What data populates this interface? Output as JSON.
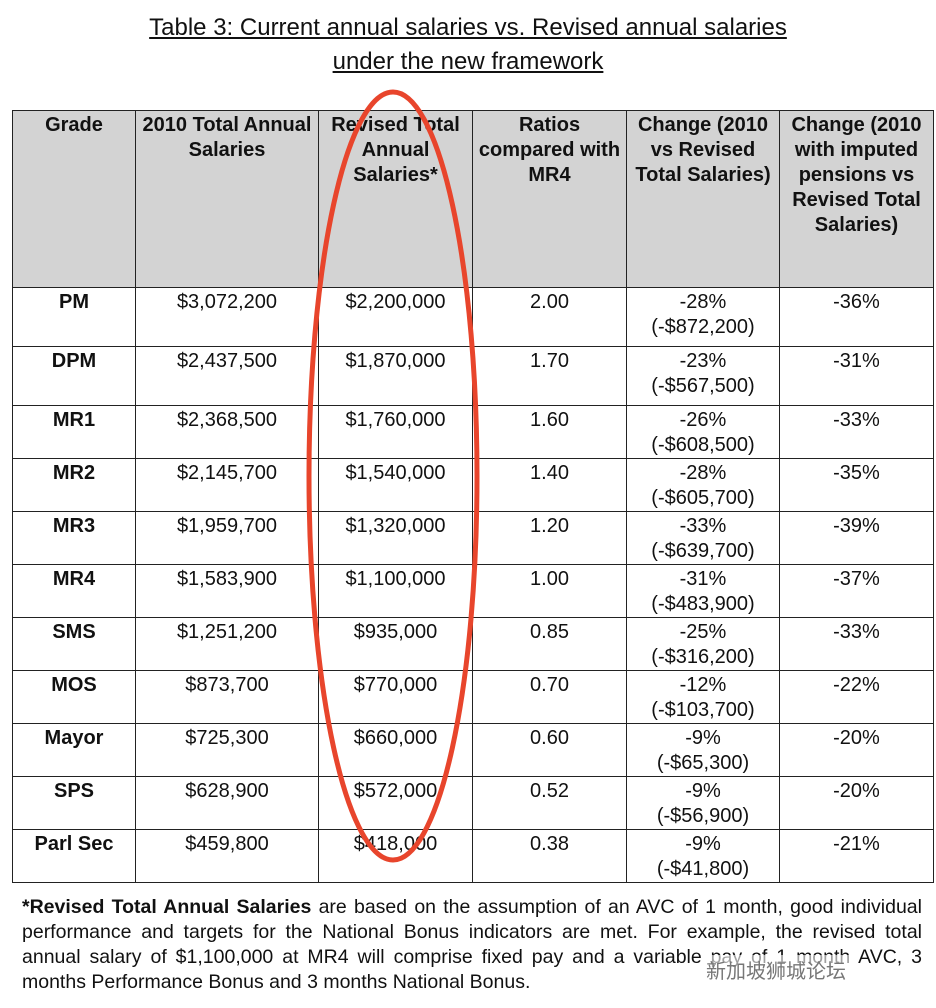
{
  "header": {
    "title_line1": "Table 3: Current annual salaries vs. Revised annual salaries",
    "title_line2": "under the new framework"
  },
  "table": {
    "columns": [
      "Grade",
      "2010 Total Annual Salaries",
      "Revised Total Annual Salaries*",
      "Ratios compared with MR4",
      "Change (2010 vs Revised Total Salaries)",
      "Change (2010 with imputed pensions vs Revised Total Salaries)"
    ],
    "rows": [
      [
        "PM",
        "$3,072,200",
        "$2,200,000",
        "2.00",
        {
          "percent": "-28%",
          "amount": "(-$872,200)"
        },
        "-36%"
      ],
      [
        "DPM",
        "$2,437,500",
        "$1,870,000",
        "1.70",
        {
          "percent": "-23%",
          "amount": "(-$567,500)"
        },
        "-31%"
      ],
      [
        "MR1",
        "$2,368,500",
        "$1,760,000",
        "1.60",
        {
          "percent": "-26%",
          "amount": "(-$608,500)"
        },
        "-33%"
      ],
      [
        "MR2",
        "$2,145,700",
        "$1,540,000",
        "1.40",
        {
          "percent": "-28%",
          "amount": "(-$605,700)"
        },
        "-35%"
      ],
      [
        "MR3",
        "$1,959,700",
        "$1,320,000",
        "1.20",
        {
          "percent": "-33%",
          "amount": "(-$639,700)"
        },
        "-39%"
      ],
      [
        "MR4",
        "$1,583,900",
        "$1,100,000",
        "1.00",
        {
          "percent": "-31%",
          "amount": "(-$483,900)"
        },
        "-37%"
      ],
      [
        "SMS",
        "$1,251,200",
        "$935,000",
        "0.85",
        {
          "percent": "-25%",
          "amount": "(-$316,200)"
        },
        "-33%"
      ],
      [
        "MOS",
        "$873,700",
        "$770,000",
        "0.70",
        {
          "percent": "-12%",
          "amount": "(-$103,700)"
        },
        "-22%"
      ],
      [
        "Mayor",
        "$725,300",
        "$660,000",
        "0.60",
        {
          "percent": "-9%",
          "amount": "(-$65,300)"
        },
        "-20%"
      ],
      [
        "SPS",
        "$628,900",
        "$572,000",
        "0.52",
        {
          "percent": "-9%",
          "amount": "(-$56,900)"
        },
        "-20%"
      ],
      [
        "Parl Sec",
        "$459,800",
        "$418,000",
        "0.38",
        {
          "percent": "-9%",
          "amount": "(-$41,800)"
        },
        "-21%"
      ]
    ]
  },
  "footnote": {
    "bold": "*Revised Total Annual Salaries",
    "text": " are based on the assumption of an AVC of 1 month, good individual performance and targets for the National Bonus indicators are met. For example, the revised total annual salary of $1,100,000 at MR4 will comprise fixed pay and a variable pay of 1 month AVC, 3 months Performance Bonus and 3 months National Bonus."
  },
  "watermark": "新加坡狮城论坛"
}
